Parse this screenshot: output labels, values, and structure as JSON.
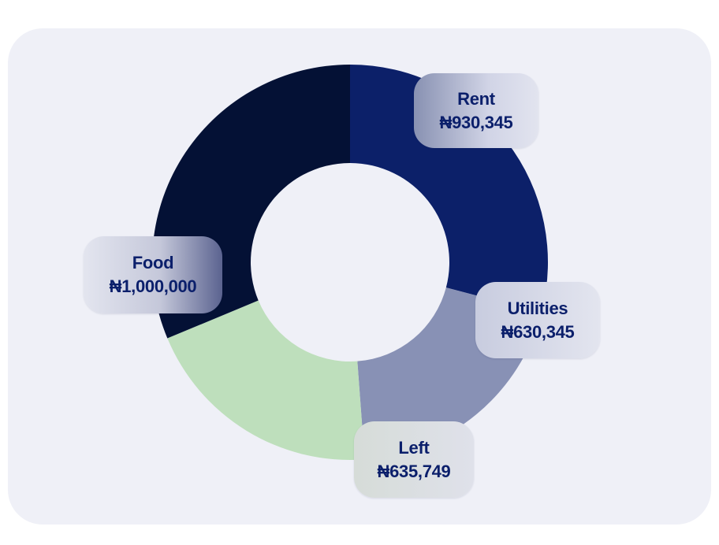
{
  "chart_data": {
    "type": "pie",
    "variant": "donut",
    "currency_symbol": "₦",
    "categories": [
      "Rent",
      "Utilities",
      "Left",
      "Food"
    ],
    "values": [
      930345,
      630345,
      635749,
      1000000
    ],
    "value_labels": [
      "₦930,345",
      "₦630,345",
      "₦635,749",
      "₦1,000,000"
    ],
    "colors": [
      "#0c2069",
      "#8891b5",
      "#bedfbc",
      "#041135"
    ],
    "start_position": "top, clockwise",
    "legend": "none (labels on slices)"
  },
  "theme": {
    "card_background": "#eff0f7",
    "label_text_color": "#0b1f6b"
  }
}
